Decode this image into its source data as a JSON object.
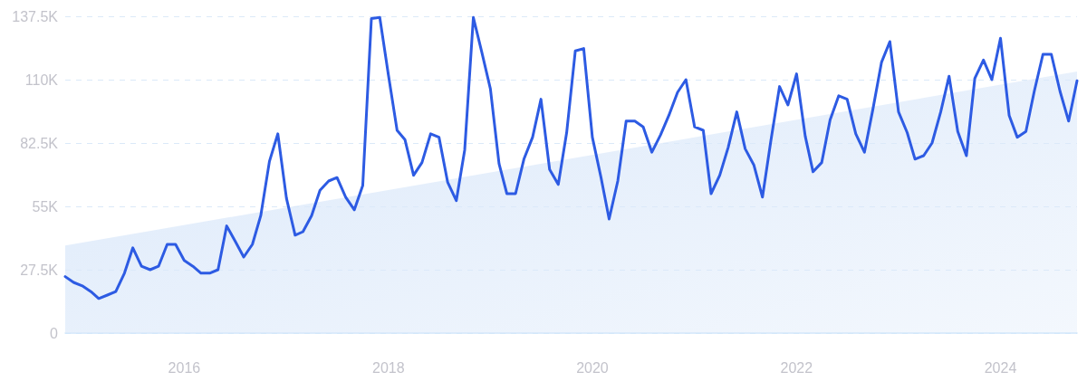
{
  "chart_data": {
    "type": "line",
    "x": [
      "2014-11",
      "2014-12",
      "2015-01",
      "2015-02",
      "2015-03",
      "2015-04",
      "2015-05",
      "2015-06",
      "2015-07",
      "2015-08",
      "2015-09",
      "2015-10",
      "2015-11",
      "2015-12",
      "2016-01",
      "2016-02",
      "2016-03",
      "2016-04",
      "2016-05",
      "2016-06",
      "2016-07",
      "2016-08",
      "2016-09",
      "2016-10",
      "2016-11",
      "2016-12",
      "2017-01",
      "2017-02",
      "2017-03",
      "2017-04",
      "2017-05",
      "2017-06",
      "2017-07",
      "2017-08",
      "2017-09",
      "2017-10",
      "2017-11",
      "2017-12",
      "2018-01",
      "2018-02",
      "2018-03",
      "2018-04",
      "2018-05",
      "2018-06",
      "2018-07",
      "2018-08",
      "2018-09",
      "2018-10",
      "2018-11",
      "2018-12",
      "2019-01",
      "2019-02",
      "2019-03",
      "2019-04",
      "2019-05",
      "2019-06",
      "2019-07",
      "2019-08",
      "2019-09",
      "2019-10",
      "2019-11",
      "2019-12",
      "2020-01",
      "2020-02",
      "2020-03",
      "2020-04",
      "2020-05",
      "2020-06",
      "2020-07",
      "2020-08",
      "2020-09",
      "2020-10",
      "2020-11",
      "2020-12",
      "2021-01",
      "2021-02",
      "2021-03",
      "2021-04",
      "2021-05",
      "2021-06",
      "2021-07",
      "2021-08",
      "2021-09",
      "2021-10",
      "2021-11",
      "2021-12",
      "2022-01",
      "2022-02",
      "2022-03",
      "2022-04",
      "2022-05",
      "2022-06",
      "2022-07",
      "2022-08",
      "2022-09",
      "2022-10",
      "2022-11",
      "2022-12",
      "2023-01",
      "2023-02",
      "2023-03",
      "2023-04",
      "2023-05",
      "2023-06",
      "2023-07",
      "2023-08",
      "2023-09",
      "2023-10",
      "2023-11",
      "2023-12",
      "2024-01",
      "2024-02",
      "2024-03",
      "2024-04",
      "2024-05",
      "2024-06",
      "2024-07",
      "2024-08",
      "2024-09",
      "2024-10"
    ],
    "series": [
      {
        "type": "area",
        "color": "#dce9fa",
        "x": [
          "2014-11",
          "2024-10"
        ],
        "values": [
          38000,
          113500
        ]
      },
      {
        "color": "#2d5be3",
        "values": [
          24500,
          22000,
          20500,
          18000,
          15000,
          16500,
          18000,
          26000,
          37000,
          29000,
          27500,
          29000,
          38500,
          38500,
          31500,
          29000,
          26000,
          26000,
          27500,
          46500,
          40000,
          33000,
          38500,
          51000,
          74500,
          86500,
          58500,
          42500,
          44000,
          51000,
          62000,
          66000,
          67500,
          59000,
          53500,
          64000,
          136500,
          137000,
          112000,
          88000,
          84000,
          68500,
          74000,
          86500,
          85000,
          65500,
          57500,
          79500,
          137000,
          122000,
          106000,
          73500,
          60500,
          60500,
          75500,
          85000,
          101500,
          71000,
          64500,
          87000,
          122500,
          123500,
          85000,
          67500,
          49500,
          66000,
          92000,
          92000,
          89500,
          78500,
          86000,
          94500,
          104500,
          110000,
          89500,
          88000,
          60500,
          68500,
          80500,
          96000,
          80000,
          73000,
          59000,
          83500,
          107000,
          99000,
          112500,
          85500,
          70000,
          74000,
          92500,
          103000,
          101500,
          86500,
          78500,
          97000,
          117500,
          126500,
          96000,
          87000,
          75500,
          77000,
          82500,
          96000,
          111500,
          87500,
          77000,
          110500,
          118500,
          110000,
          128000,
          94500,
          85000,
          87500,
          105000,
          121000,
          121000,
          105000,
          92000,
          109500
        ]
      }
    ],
    "xlim": [
      "2014-11",
      "2024-10"
    ],
    "xticks": [
      {
        "value": "2016-01",
        "label": "2016"
      },
      {
        "value": "2018-01",
        "label": "2018"
      },
      {
        "value": "2020-01",
        "label": "2020"
      },
      {
        "value": "2022-01",
        "label": "2022"
      },
      {
        "value": "2024-01",
        "label": "2024"
      }
    ],
    "ylim": [
      0,
      137500
    ],
    "yticks": [
      0,
      {
        "value": 27500,
        "label": "27.5K"
      },
      {
        "value": 55000,
        "label": "55K"
      },
      {
        "value": 82500,
        "label": "82.5K"
      },
      {
        "value": 110000,
        "label": "110K"
      },
      {
        "value": 137500,
        "label": "137.5K"
      }
    ],
    "grid": "y",
    "marker": "none",
    "line_style": "solid"
  }
}
